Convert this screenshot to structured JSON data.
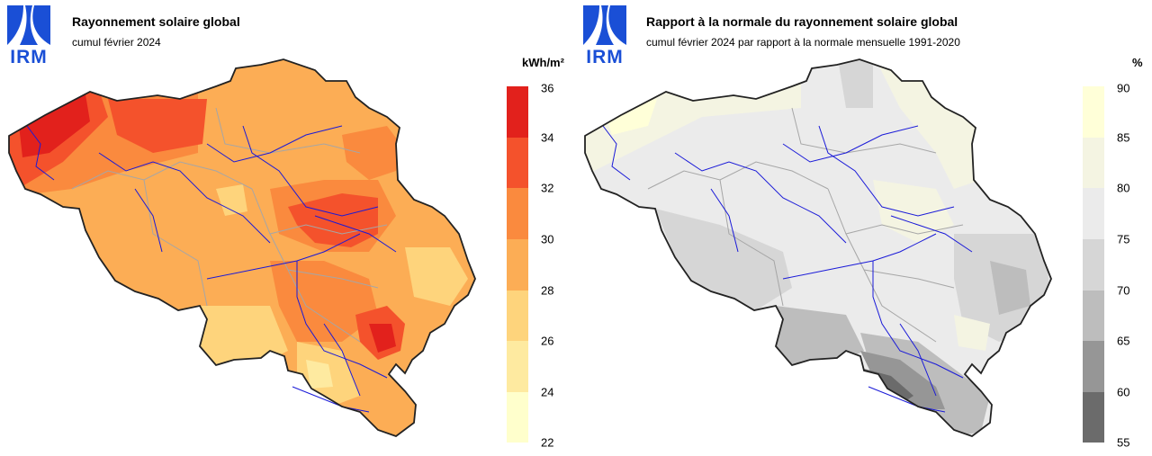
{
  "maps": [
    {
      "logo_text": "IRM",
      "title": "Rayonnement solaire global",
      "subtitle": "cumul février 2024",
      "unit": "kWh/m²",
      "legend_ticks": [
        "36",
        "34",
        "32",
        "30",
        "28",
        "26",
        "24",
        "22"
      ],
      "legend_colors": [
        "#e2211c",
        "#f4522c",
        "#fa8a3e",
        "#fcad55",
        "#fed47c",
        "#feeaa0",
        "#ffffcc"
      ],
      "scale_min": 22,
      "scale_max": 36
    },
    {
      "logo_text": "IRM",
      "title": "Rapport à la normale du rayonnement solaire global",
      "subtitle": "cumul février 2024 par rapport à la normale mensuelle 1991-2020",
      "unit": "%",
      "legend_ticks": [
        "90",
        "85",
        "80",
        "75",
        "70",
        "65",
        "60",
        "55"
      ],
      "legend_colors": [
        "#ffffd8",
        "#f4f4e2",
        "#ebebeb",
        "#d6d6d6",
        "#bdbdbd",
        "#969696",
        "#6b6b6b"
      ],
      "scale_min": 55,
      "scale_max": 90
    }
  ]
}
